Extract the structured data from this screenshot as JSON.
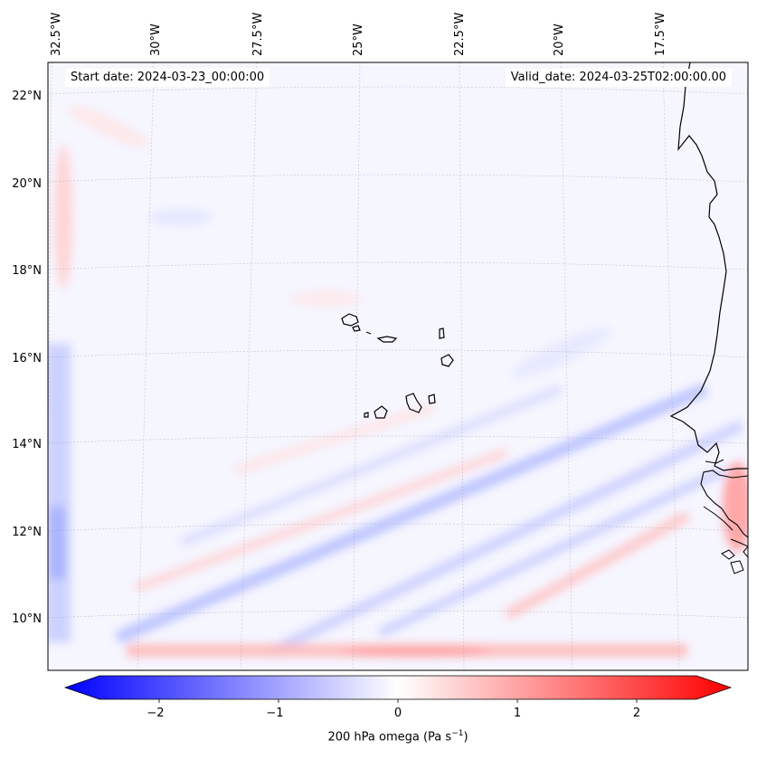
{
  "map": {
    "start_label": "Start date: 2024-03-23_00:00:00",
    "valid_label": "Valid_date: 2024-03-25T02:00:00.00",
    "lon_labels": [
      "32.5°W",
      "30°W",
      "27.5°W",
      "25°W",
      "22.5°W",
      "20°W",
      "17.5°W"
    ],
    "lat_labels": [
      "22°N",
      "20°N",
      "18°N",
      "16°N",
      "14°N",
      "12°N",
      "10°N"
    ],
    "variable": "200 hPa omega",
    "units": "Pa s",
    "units_exponent": "−1"
  },
  "colorbar": {
    "ticks": [
      -2,
      -1,
      0,
      1,
      2
    ],
    "tick_labels": [
      "−2",
      "−1",
      "0",
      "1",
      "2"
    ],
    "vmin": -2.5,
    "vmax": 2.5,
    "cmap": "bwr",
    "extend": "both"
  },
  "colors": {
    "negative": "#0000ff",
    "neutral": "#ffffff",
    "positive": "#ff0000",
    "coast": "#000000"
  }
}
